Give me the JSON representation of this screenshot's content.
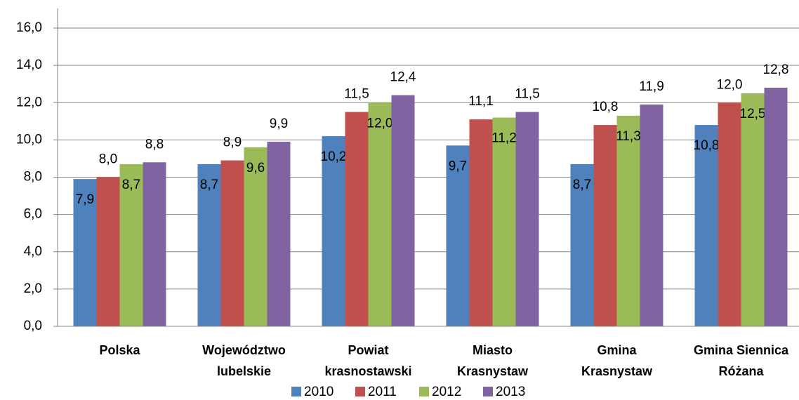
{
  "chart_data": {
    "type": "bar",
    "categories": [
      [
        "Polska"
      ],
      [
        "Województwo",
        "lubelskie"
      ],
      [
        "Powiat",
        "krasnostawski"
      ],
      [
        "Miasto",
        "Krasnystaw"
      ],
      [
        "Gmina",
        "Krasnystaw"
      ],
      [
        "Gmina Siennica",
        "Różana"
      ]
    ],
    "series": [
      {
        "name": "2010",
        "color": "#4f81bd",
        "values": [
          7.9,
          8.7,
          10.2,
          9.7,
          8.7,
          10.8
        ],
        "value_labels": [
          "7,9",
          "8,7",
          "10,2",
          "9,7",
          "8,7",
          "10,8"
        ]
      },
      {
        "name": "2011",
        "color": "#c0504d",
        "values": [
          8.0,
          8.9,
          11.5,
          11.1,
          10.8,
          12.0
        ],
        "value_labels": [
          "8,0",
          "8,9",
          "11,5",
          "11,1",
          "10,8",
          "12,0"
        ]
      },
      {
        "name": "2012",
        "color": "#9bbb59",
        "values": [
          8.7,
          9.6,
          12.0,
          11.2,
          11.3,
          12.5
        ],
        "value_labels": [
          "8,7",
          "9,6",
          "12,0",
          "11,2",
          "11,3",
          "12,5"
        ]
      },
      {
        "name": "2013",
        "color": "#8064a2",
        "values": [
          8.8,
          9.9,
          12.4,
          11.5,
          11.9,
          12.8
        ],
        "value_labels": [
          "8,8",
          "9,9",
          "12,4",
          "11,5",
          "11,9",
          "12,8"
        ]
      }
    ],
    "ylim": [
      0,
      16
    ],
    "yticks": [
      {
        "value": 0,
        "label": "0,0"
      },
      {
        "value": 2,
        "label": "2,0"
      },
      {
        "value": 4,
        "label": "4,0"
      },
      {
        "value": 6,
        "label": "6,0"
      },
      {
        "value": 8,
        "label": "8,0"
      },
      {
        "value": 10,
        "label": "10,0"
      },
      {
        "value": 12,
        "label": "12,0"
      },
      {
        "value": 14,
        "label": "14,0"
      },
      {
        "value": 16,
        "label": "16,0"
      }
    ],
    "grid": true,
    "legend": "bottom"
  }
}
